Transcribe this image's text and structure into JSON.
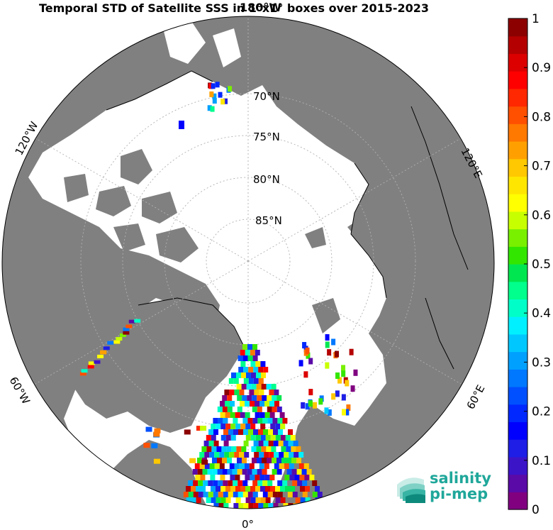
{
  "title": "Temporal STD of Satellite SSS in 1°x1° boxes over 2015-2023",
  "top_label": "180°W",
  "latitude_labels": [
    "70°N",
    "75°N",
    "80°N",
    "85°N"
  ],
  "longitude_labels": {
    "bottom": "0°",
    "left_top": "120°W",
    "left_bottom": "60°W",
    "right_top": "120°E",
    "right_bottom": "60°E"
  },
  "colorbar": {
    "min": 0,
    "max": 1,
    "tick_labels": [
      "0",
      "0.1",
      "0.2",
      "0.3",
      "0.4",
      "0.5",
      "0.6",
      "0.7",
      "0.8",
      "0.9",
      "1"
    ],
    "colors": [
      "#800080",
      "#5a0aa6",
      "#3c14c8",
      "#1e1ee6",
      "#0000ff",
      "#0028ff",
      "#0050ff",
      "#0078ff",
      "#00a0ff",
      "#00c8ff",
      "#00f0ff",
      "#00ffc8",
      "#00ff8c",
      "#00e650",
      "#32e600",
      "#78f000",
      "#c8ff00",
      "#ffff00",
      "#ffe600",
      "#ffc800",
      "#ffa000",
      "#ff7800",
      "#ff5000",
      "#ff2800",
      "#ff0000",
      "#dc0000",
      "#b40000",
      "#8c0000"
    ]
  },
  "logo": {
    "line1": "salinity",
    "line2": "pi-mep"
  },
  "colors": {
    "land": "#808080",
    "ocean_no_data": "#ffffff",
    "grid": "#b0b0b0",
    "coast": "#000000",
    "logo": "#1fa79a"
  }
}
